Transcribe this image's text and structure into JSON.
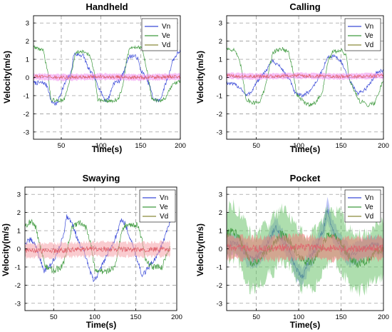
{
  "figure": {
    "panels": [
      {
        "title": "Handheld",
        "xlabel": "Time(s)",
        "ylabel": "Velocity(m/s)",
        "legend": [
          "Vn",
          "Ve",
          "Vd"
        ]
      },
      {
        "title": "Calling",
        "xlabel": "Time(s)",
        "ylabel": "Velocity(m/s)",
        "legend": [
          "Vn",
          "Ve",
          "Vd"
        ]
      },
      {
        "title": "Swaying",
        "xlabel": "Time(s)",
        "ylabel": "Velocity(m/s)",
        "legend": [
          "Vn",
          "Ve",
          "Vd"
        ]
      },
      {
        "title": "Pocket",
        "xlabel": "Time(s)",
        "ylabel": "Velocity(m/s)",
        "legend": [
          "Vn",
          "Ve",
          "Vd"
        ]
      }
    ]
  },
  "chart_data": [
    {
      "type": "line",
      "title": "Handheld",
      "xlabel": "Time(s)",
      "ylabel": "Velocity(m/s)",
      "xlim": [
        15,
        200
      ],
      "ylim": [
        -3.4,
        3.4
      ],
      "xticks": [
        50,
        100,
        150,
        200
      ],
      "yticks": [
        -3,
        -2,
        -1,
        0,
        1,
        2,
        3
      ],
      "grid": true,
      "legend_position": "top-right",
      "series": [
        {
          "name": "Vn",
          "color": "#3b4bd8",
          "noise": 0.12,
          "x": [
            15,
            28,
            33,
            37,
            44,
            50,
            56,
            62,
            66,
            78,
            84,
            90,
            95,
            100,
            106,
            110,
            116,
            123,
            129,
            134,
            140,
            146,
            150,
            155,
            161,
            166,
            174,
            181,
            186,
            190,
            196,
            200
          ],
          "y": [
            -0.3,
            -0.3,
            -0.5,
            -1.3,
            -1.5,
            -0.8,
            -0.2,
            0.2,
            1.3,
            1.2,
            0.5,
            0.1,
            -0.3,
            -0.8,
            -1.3,
            -1.1,
            -0.3,
            -0.2,
            0.3,
            1.1,
            1.2,
            1.1,
            0.4,
            0.1,
            -0.4,
            -1.2,
            -1.3,
            -0.4,
            0.2,
            0.9,
            1.3,
            1.5
          ]
        },
        {
          "name": "Ve",
          "color": "#3f9a3f",
          "noise": 0.1,
          "x": [
            15,
            20,
            27,
            33,
            37,
            45,
            54,
            60,
            64,
            68,
            80,
            86,
            92,
            96,
            104,
            113,
            122,
            128,
            132,
            136,
            145,
            152,
            158,
            164,
            176,
            182,
            190,
            200
          ],
          "y": [
            1.7,
            1.6,
            1.5,
            0.3,
            -1.2,
            -1.3,
            -1.2,
            -0.3,
            0.5,
            1.4,
            1.4,
            1.2,
            0.2,
            -1.2,
            -1.3,
            -1.3,
            -1.2,
            -0.4,
            0.9,
            1.6,
            1.7,
            1.6,
            0.4,
            -1.2,
            -1.3,
            -1.1,
            -0.4,
            -0.2
          ]
        },
        {
          "name": "Vd",
          "color": "#e0606a",
          "noise": 0.1,
          "band": 0.22,
          "band_color": "#f08cf0",
          "x": [
            15,
            50,
            100,
            150,
            200
          ],
          "y": [
            0.05,
            0.0,
            0.05,
            0.0,
            0.05
          ]
        }
      ]
    },
    {
      "type": "line",
      "title": "Calling",
      "xlabel": "Time(s)",
      "ylabel": "Velocity(m/s)",
      "xlim": [
        15,
        200
      ],
      "ylim": [
        -3.4,
        3.4
      ],
      "xticks": [
        50,
        100,
        150,
        200
      ],
      "yticks": [
        -3,
        -2,
        -1,
        0,
        1,
        2,
        3
      ],
      "grid": true,
      "legend_position": "top-right",
      "series": [
        {
          "name": "Vn",
          "color": "#3b4bd8",
          "noise": 0.1,
          "x": [
            15,
            25,
            32,
            38,
            44,
            50,
            57,
            63,
            68,
            76,
            83,
            90,
            96,
            104,
            112,
            120,
            128,
            134,
            142,
            150,
            156,
            163,
            170,
            180,
            186,
            192,
            200
          ],
          "y": [
            -0.3,
            -0.4,
            -0.6,
            -1.0,
            -0.8,
            -0.3,
            0.1,
            0.5,
            0.9,
            0.7,
            0.3,
            -0.2,
            -0.9,
            -1.0,
            -0.8,
            -0.3,
            0.4,
            1.1,
            1.2,
            0.9,
            0.2,
            -0.4,
            -0.9,
            -0.6,
            -0.2,
            0.3,
            0.4
          ]
        },
        {
          "name": "Ve",
          "color": "#3f9a3f",
          "noise": 0.12,
          "x": [
            15,
            25,
            32,
            38,
            46,
            55,
            62,
            66,
            70,
            80,
            88,
            93,
            98,
            110,
            120,
            128,
            134,
            140,
            150,
            156,
            160,
            172,
            182,
            190,
            200
          ],
          "y": [
            1.6,
            1.5,
            0.6,
            -1.2,
            -1.4,
            -1.3,
            -0.3,
            0.7,
            1.4,
            1.6,
            1.4,
            0.4,
            -1.0,
            -1.5,
            -1.4,
            -0.8,
            0.8,
            1.4,
            1.5,
            1.2,
            -0.2,
            -1.3,
            -1.5,
            -1.4,
            -0.1
          ]
        },
        {
          "name": "Vd",
          "color": "#e0606a",
          "noise": 0.09,
          "band": 0.2,
          "band_color": "#f08cf0",
          "x": [
            15,
            50,
            100,
            150,
            200
          ],
          "y": [
            0.1,
            0.05,
            0.1,
            0.05,
            0.1
          ]
        }
      ]
    },
    {
      "type": "line",
      "title": "Swaying",
      "xlabel": "Time(s)",
      "ylabel": "Velocity(m/s)",
      "xlim": [
        15,
        200
      ],
      "ylim": [
        -3.4,
        3.4
      ],
      "xticks": [
        50,
        100,
        150,
        200
      ],
      "yticks": [
        -3,
        -2,
        -1,
        0,
        1,
        2,
        3
      ],
      "grid": true,
      "legend_position": "top-right",
      "series": [
        {
          "name": "Vn",
          "color": "#3b4bd8",
          "noise": 0.15,
          "x": [
            15,
            22,
            28,
            33,
            38,
            45,
            55,
            62,
            66,
            72,
            80,
            88,
            94,
            99,
            106,
            114,
            122,
            128,
            132,
            137,
            144,
            152,
            158,
            166,
            174,
            182,
            188,
            192
          ],
          "y": [
            0.3,
            0.5,
            0.2,
            -0.5,
            -1.2,
            -1.0,
            -0.2,
            0.8,
            1.8,
            1.5,
            0.4,
            -0.3,
            -1.2,
            -1.8,
            -1.2,
            -0.4,
            0.3,
            0.9,
            1.6,
            1.4,
            0.5,
            -0.6,
            -1.5,
            -1.0,
            -0.5,
            0.2,
            1.0,
            1.5
          ]
        },
        {
          "name": "Ve",
          "color": "#3f9a3f",
          "noise": 0.18,
          "x": [
            15,
            22,
            28,
            34,
            40,
            50,
            60,
            66,
            72,
            82,
            90,
            96,
            100,
            112,
            124,
            130,
            134,
            140,
            152,
            158,
            162,
            172,
            182,
            188,
            192
          ],
          "y": [
            1.3,
            1.5,
            1.2,
            0.1,
            -1.0,
            -1.2,
            -1.0,
            -0.2,
            1.2,
            1.4,
            1.2,
            0.2,
            -1.1,
            -1.3,
            -1.0,
            0.2,
            1.2,
            1.4,
            1.3,
            0.5,
            -0.7,
            -1.0,
            -1.0,
            -0.2,
            0.0
          ]
        },
        {
          "name": "Vd",
          "color": "#e0606a",
          "noise": 0.14,
          "band": 0.5,
          "band_color": "#f5a0a8",
          "x": [
            15,
            50,
            100,
            150,
            192
          ],
          "y": [
            -0.1,
            -0.1,
            0.0,
            -0.05,
            0.0
          ]
        }
      ]
    },
    {
      "type": "line",
      "title": "Pocket",
      "xlabel": "Time(s)",
      "ylabel": "Velocity(m/s)",
      "xlim": [
        15,
        200
      ],
      "ylim": [
        -3.4,
        3.4
      ],
      "xticks": [
        50,
        100,
        150,
        200
      ],
      "yticks": [
        -3,
        -2,
        -1,
        0,
        1,
        2,
        3
      ],
      "grid": true,
      "legend_position": "top-right",
      "series": [
        {
          "name": "Vn",
          "color": "#3b4bd8",
          "noise": 0.2,
          "band": 0.7,
          "band_color": "#8a96f0",
          "x": [
            15,
            25,
            35,
            45,
            55,
            65,
            72,
            80,
            90,
            98,
            104,
            112,
            122,
            130,
            134,
            140,
            150,
            160,
            170,
            180,
            190,
            200
          ],
          "y": [
            0.2,
            0.3,
            -0.1,
            -0.6,
            -0.3,
            0.4,
            1.2,
            0.6,
            -0.2,
            -1.2,
            -1.6,
            -0.6,
            0.2,
            1.2,
            2.2,
            1.0,
            0.2,
            -0.4,
            -0.2,
            0.1,
            0.2,
            0.1
          ]
        },
        {
          "name": "Ve",
          "color": "#3f9a3f",
          "noise": 0.25,
          "band": 1.9,
          "band_color": "#6cc26c",
          "x": [
            15,
            22,
            30,
            38,
            44,
            52,
            60,
            70,
            78,
            86,
            94,
            100,
            110,
            120,
            128,
            132,
            140,
            150,
            156,
            162,
            170,
            180,
            190,
            200
          ],
          "y": [
            0.8,
            1.0,
            0.6,
            -0.2,
            -0.8,
            -0.6,
            -0.2,
            0.2,
            0.8,
            0.6,
            0.1,
            -0.5,
            -0.8,
            -0.5,
            0.1,
            0.6,
            0.8,
            0.4,
            -0.2,
            -0.6,
            -0.8,
            -0.7,
            -0.2,
            0.0
          ]
        },
        {
          "name": "Vd",
          "color": "#e0606a",
          "noise": 0.2,
          "band": 0.8,
          "band_color": "#f07878",
          "x": [
            15,
            50,
            100,
            150,
            200
          ],
          "y": [
            0.1,
            0.0,
            0.1,
            0.0,
            0.05
          ]
        }
      ]
    }
  ]
}
